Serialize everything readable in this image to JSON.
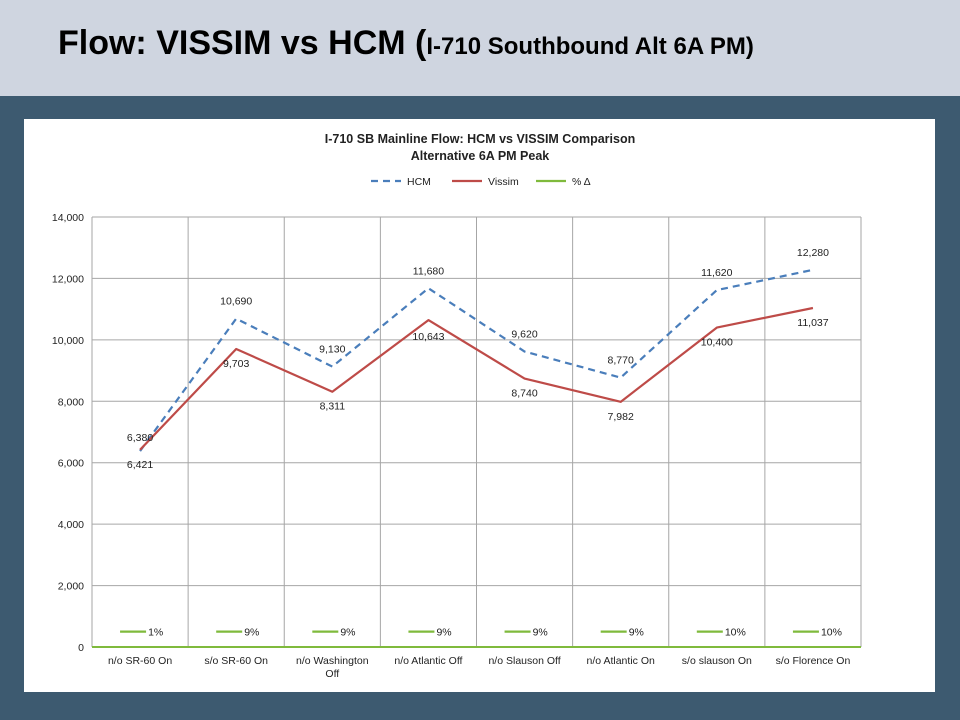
{
  "slide": {
    "title_main": "Flow: VISSIM vs HCM ",
    "title_paren": "(",
    "title_sub": "I-710 Southbound Alt 6A PM)"
  },
  "chart_data": {
    "type": "line",
    "title": "I-710 SB Mainline Flow: HCM vs VISSIM Comparison",
    "subtitle": "Alternative 6A PM Peak",
    "xlabel": "",
    "ylabel": "",
    "ylim": [
      0,
      14000
    ],
    "yticks": [
      "0",
      "2,000",
      "4,000",
      "6,000",
      "8,000",
      "10,000",
      "12,000",
      "14,000"
    ],
    "grid": true,
    "legend_position": "top",
    "categories": [
      "n/o SR-60 On",
      "s/o SR-60 On",
      "n/o Washington Off",
      "n/o Atlantic Off",
      "n/o Slauson Off",
      "n/o Atlantic On",
      "s/o slauson On",
      "s/o Florence On"
    ],
    "series": [
      {
        "name": "HCM",
        "style": "dashed",
        "color": "#4a7ebb",
        "values": [
          6380,
          10690,
          9130,
          11680,
          9620,
          8770,
          11620,
          12280
        ],
        "labels": [
          "6,380",
          "10,690",
          "9,130",
          "11,680",
          "9,620",
          "8,770",
          "11,620",
          "12,280"
        ]
      },
      {
        "name": "Vissim",
        "style": "solid",
        "color": "#be4b48",
        "values": [
          6421,
          9703,
          8311,
          10643,
          8740,
          7982,
          10400,
          11037
        ],
        "labels": [
          "6,421",
          "9,703",
          "8,311",
          "10,643",
          "8,740",
          "7,982",
          "10,400",
          "11,037"
        ]
      },
      {
        "name": "% Δ",
        "style": "solid",
        "color": "#7fba3c",
        "values": [
          1,
          9,
          9,
          9,
          9,
          9,
          10,
          10
        ],
        "labels": [
          "1%",
          "9%",
          "9%",
          "9%",
          "9%",
          "9%",
          "10%",
          "10%"
        ]
      }
    ]
  }
}
